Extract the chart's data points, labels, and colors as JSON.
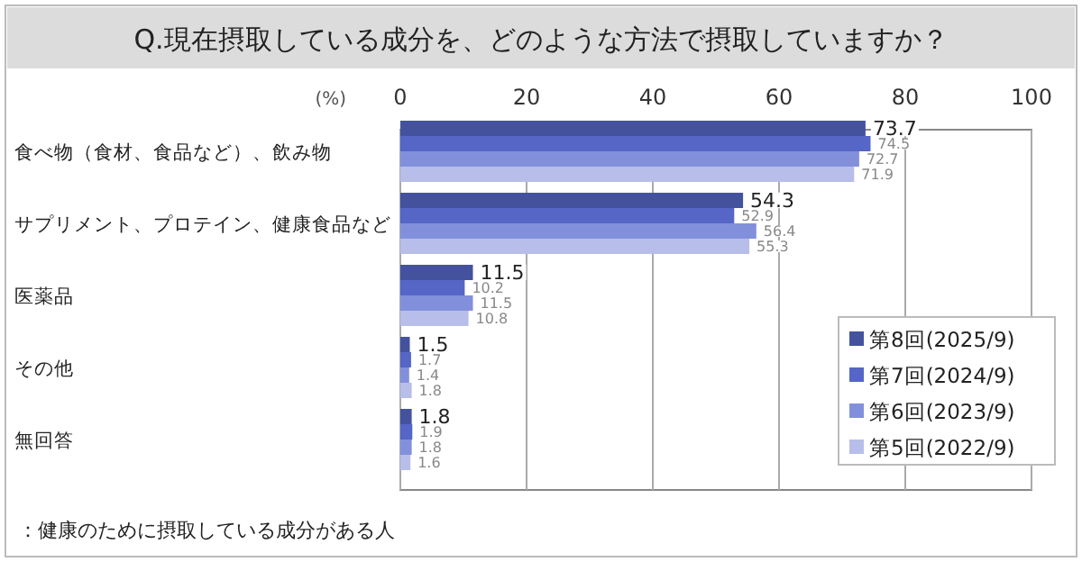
{
  "chart_data": {
    "type": "bar",
    "orientation": "horizontal",
    "title": "Q.現在摂取している成分を、どのような方法で摂取していますか？",
    "xlabel": "(%)",
    "categories": [
      "食べ物（食材、食品など）、飲み物",
      "サプリメント、プロテイン、健康食品など",
      "医薬品",
      "その他",
      "無回答"
    ],
    "series": [
      {
        "name": "第8回(2025/9)",
        "color": "#44529e",
        "values": [
          73.7,
          54.3,
          11.5,
          1.5,
          1.8
        ]
      },
      {
        "name": "第7回(2024/9)",
        "color": "#5566c6",
        "values": [
          74.5,
          52.9,
          10.2,
          1.7,
          1.9
        ]
      },
      {
        "name": "第6回(2023/9)",
        "color": "#8290dc",
        "values": [
          72.7,
          56.4,
          11.5,
          1.4,
          1.8
        ]
      },
      {
        "name": "第5回(2022/9)",
        "color": "#b7bee9",
        "values": [
          71.9,
          55.3,
          10.8,
          1.8,
          1.6
        ]
      }
    ],
    "xlim": [
      0,
      100
    ],
    "xticks": [
      0,
      20,
      40,
      60,
      80,
      100
    ],
    "grid": "x",
    "legend": "bottom right",
    "data_labels": true,
    "annotations": [
      "：健康のために摂取している成分がある人"
    ]
  }
}
